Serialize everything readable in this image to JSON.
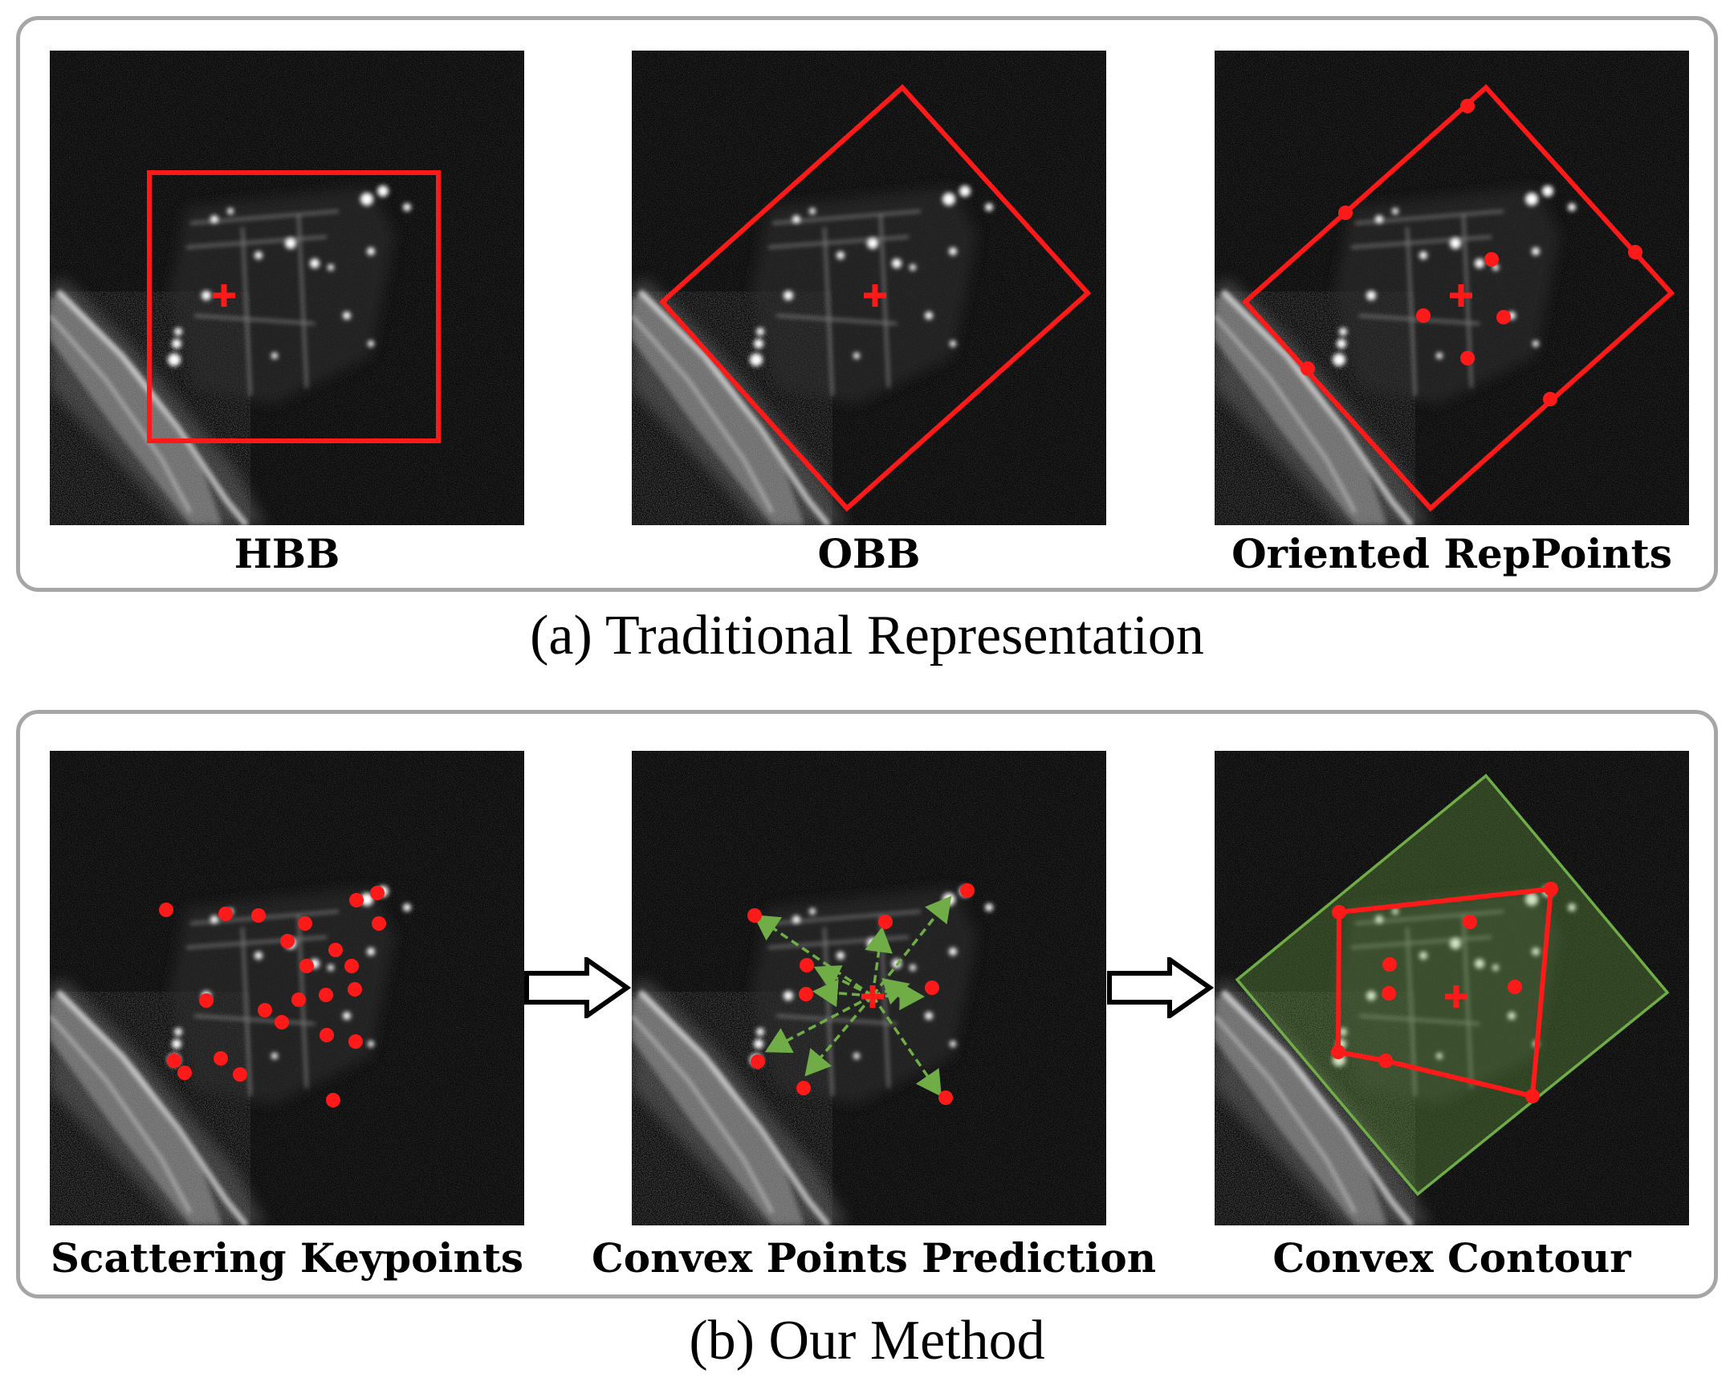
{
  "panel_a": {
    "caption": "(a) Traditional Representation",
    "items": [
      {
        "label": "HBB"
      },
      {
        "label": "OBB"
      },
      {
        "label": "Oriented RepPoints"
      }
    ]
  },
  "panel_b": {
    "caption": "(b) Our Method",
    "items": [
      {
        "label": "Scattering Keypoints"
      },
      {
        "label": "Convex Points Prediction"
      },
      {
        "label": "Convex Contour"
      }
    ]
  },
  "colors": {
    "annotation_red": "#ff1a1a",
    "prediction_green": "#70ad47",
    "frame_gray": "#a6a6a6",
    "image_background": "#0a0a0a"
  }
}
